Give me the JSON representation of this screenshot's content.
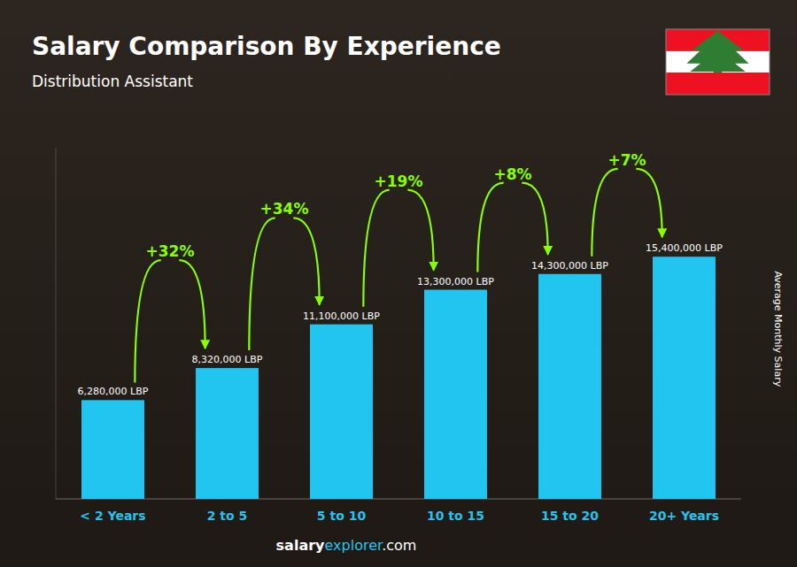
{
  "chart_data": {
    "type": "bar",
    "title": "Salary Comparison By Experience",
    "subtitle": "Distribution Assistant",
    "ylabel": "Average Monthly Salary",
    "categories": [
      "< 2 Years",
      "2 to 5",
      "5 to 10",
      "10 to 15",
      "15 to 20",
      "20+ Years"
    ],
    "values": [
      6280000,
      8320000,
      11100000,
      13300000,
      14300000,
      15400000
    ],
    "value_labels": [
      "6,280,000 LBP",
      "8,320,000 LBP",
      "11,100,000 LBP",
      "13,300,000 LBP",
      "14,300,000 LBP",
      "15,400,000 LBP"
    ],
    "data_labels": true,
    "annotations": [
      "+32%",
      "+34%",
      "+19%",
      "+8%",
      "+7%"
    ],
    "watermark": [
      "salary",
      "explorer",
      ".com"
    ],
    "color": "#22c5f0",
    "ylim": [
      0,
      22330000
    ],
    "tick_labels": "x",
    "grid": false
  }
}
